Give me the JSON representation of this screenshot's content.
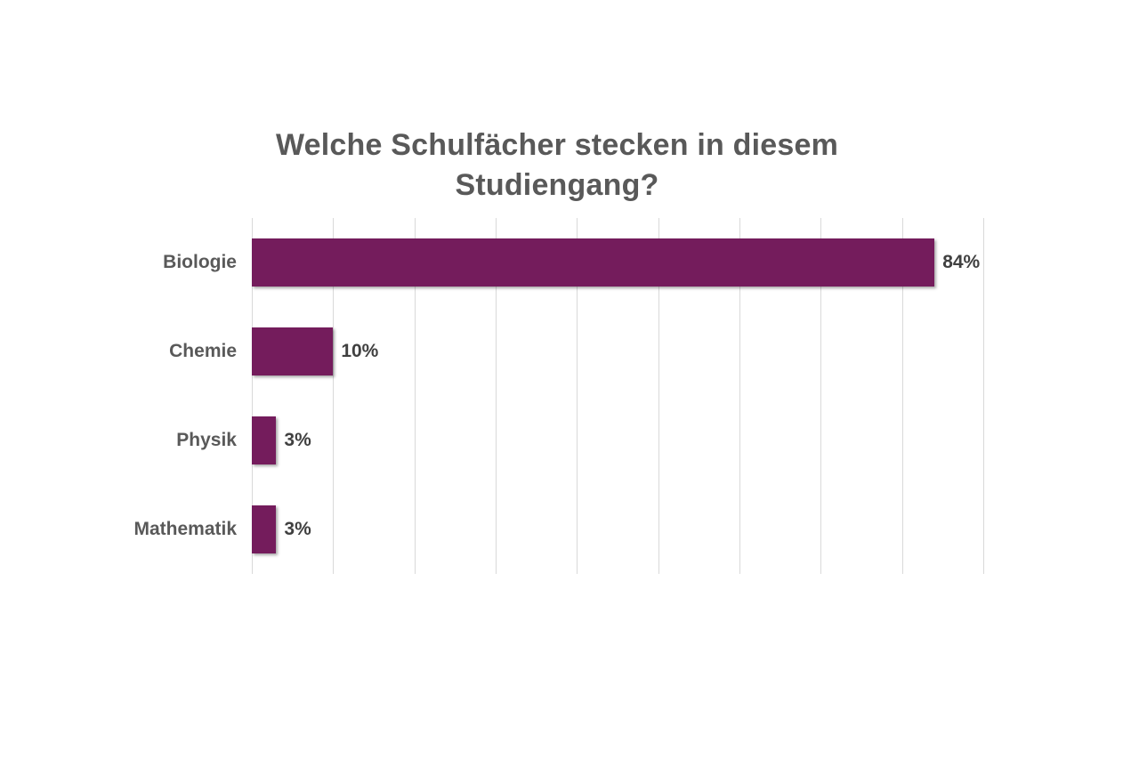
{
  "chart_data": {
    "type": "bar",
    "orientation": "horizontal",
    "title": "Welche Schulfächer stecken in diesem Studiengang?",
    "title_lines": [
      "Welche Schulfächer stecken in diesem",
      "Studiengang?"
    ],
    "categories": [
      "Biologie",
      "Chemie",
      "Physik",
      "Mathematik"
    ],
    "values": [
      84,
      10,
      3,
      3
    ],
    "value_labels": [
      "84%",
      "10%",
      "3%",
      "3%"
    ],
    "xlabel": "",
    "ylabel": "",
    "xlim": [
      0,
      90
    ],
    "gridline_step": 10,
    "grid": "vertical-only",
    "legend": "none",
    "colors": {
      "bar": "#741C5C",
      "title": "#595959",
      "category_label": "#595959",
      "value_label": "#404040",
      "gridline": "#D9D9D9",
      "background": "#FFFFFF"
    }
  }
}
